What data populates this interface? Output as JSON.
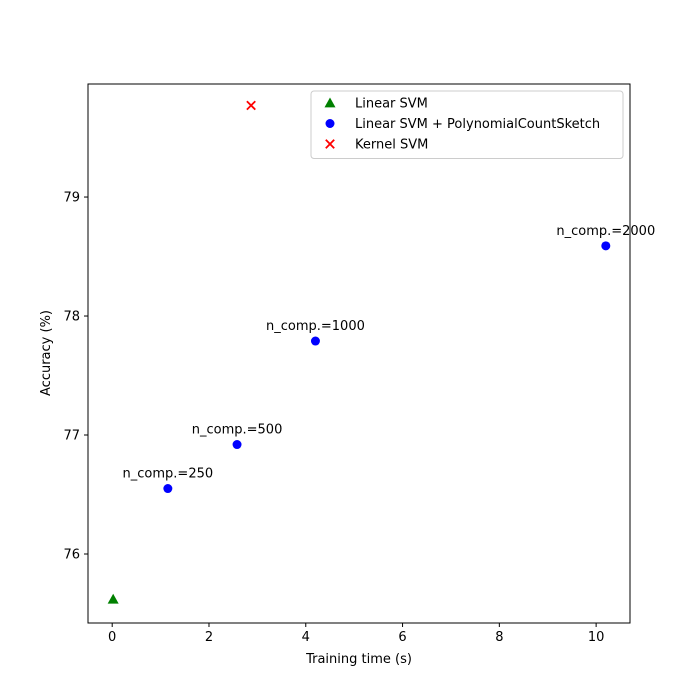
{
  "chart_data": {
    "type": "scatter",
    "xlabel": "Training time (s)",
    "ylabel": "Accuracy (%)",
    "xlim": [
      -0.5,
      10.7
    ],
    "ylim": [
      75.42,
      79.95
    ],
    "xticks": [
      0,
      2,
      4,
      6,
      8,
      10
    ],
    "yticks": [
      76,
      77,
      78,
      79
    ],
    "legend_position": "top-right",
    "grid": false,
    "series": [
      {
        "name": "Linear SVM",
        "marker": "triangle",
        "color": "#008000",
        "points": [
          {
            "x": 0.02,
            "y": 75.62,
            "label": ""
          }
        ]
      },
      {
        "name": "Linear SVM + PolynomialCountSketch",
        "marker": "circle",
        "color": "#0000ff",
        "points": [
          {
            "x": 1.15,
            "y": 76.55,
            "label": "n_comp.=250"
          },
          {
            "x": 2.58,
            "y": 76.92,
            "label": "n_comp.=500"
          },
          {
            "x": 4.2,
            "y": 77.79,
            "label": "n_comp.=1000"
          },
          {
            "x": 10.2,
            "y": 78.59,
            "label": "n_comp.=2000"
          }
        ]
      },
      {
        "name": "Kernel SVM",
        "marker": "x",
        "color": "#ff0000",
        "points": [
          {
            "x": 2.87,
            "y": 79.77,
            "label": ""
          }
        ]
      }
    ]
  }
}
